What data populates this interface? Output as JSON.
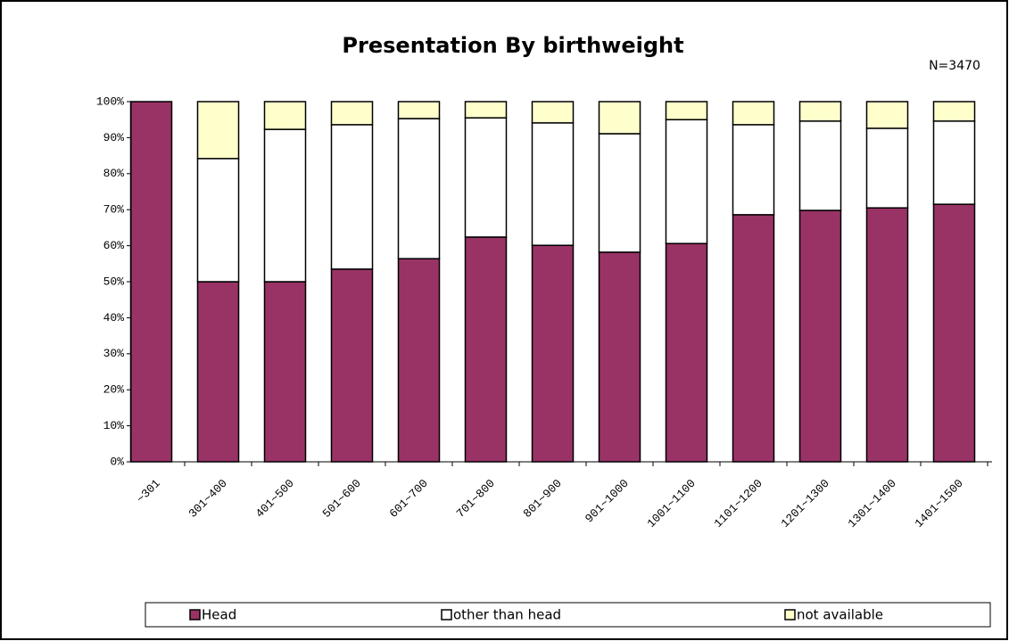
{
  "chart_data": {
    "type": "stacked_bar",
    "title": "Presentation By birthweight",
    "subtitle": "N=3470",
    "categories": [
      "~301",
      "301~400",
      "401~500",
      "501~600",
      "601~700",
      "701~800",
      "801~900",
      "901~1000",
      "1001~1100",
      "1101~1200",
      "1201~1300",
      "1301~1400",
      "1401~1500"
    ],
    "series": [
      {
        "name": "Head",
        "color": "#993366",
        "values": [
          100,
          50,
          50,
          53.5,
          56.4,
          62.4,
          60.1,
          58.2,
          60.6,
          68.6,
          69.8,
          70.5,
          71.5
        ]
      },
      {
        "name": "other than head",
        "color": "#ffffff",
        "values": [
          0,
          34.2,
          42.3,
          40.1,
          38.9,
          33.1,
          34,
          32.9,
          34.4,
          25,
          24.8,
          22.1,
          23.1
        ]
      },
      {
        "name": "not available",
        "color": "#ffffcc",
        "values": [
          0,
          15.8,
          7.7,
          6.4,
          4.7,
          4.5,
          5.9,
          8.9,
          5,
          6.4,
          5.4,
          7.4,
          5.4
        ]
      }
    ],
    "ylim": [
      0,
      100
    ],
    "yticks": [
      {
        "value": 0,
        "label": "0%"
      },
      {
        "value": 10,
        "label": "10%"
      },
      {
        "value": 20,
        "label": "20%"
      },
      {
        "value": 30,
        "label": "30%"
      },
      {
        "value": 40,
        "label": "40%"
      },
      {
        "value": 50,
        "label": "50%"
      },
      {
        "value": 60,
        "label": "60%"
      },
      {
        "value": 70,
        "label": "70%"
      },
      {
        "value": 80,
        "label": "80%"
      },
      {
        "value": 90,
        "label": "90%"
      },
      {
        "value": 100,
        "label": "100%"
      }
    ],
    "legend": "bottom"
  }
}
